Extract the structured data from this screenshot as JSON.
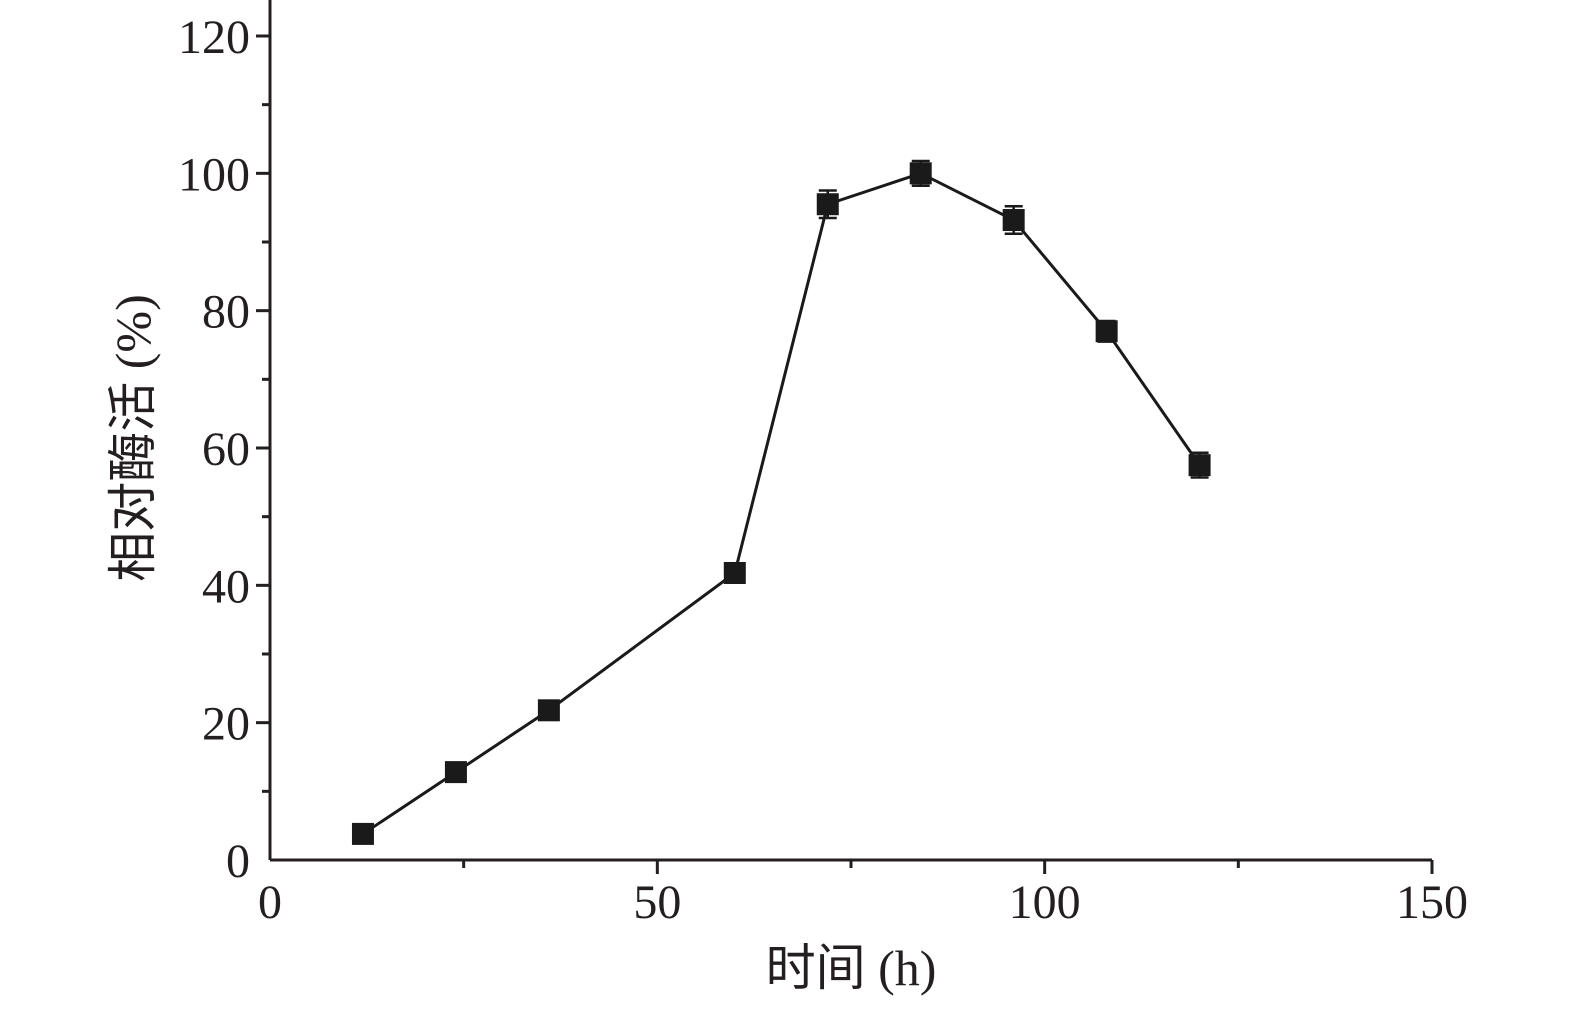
{
  "chart_data": {
    "type": "line",
    "xlabel": "时间 (h)",
    "ylabel": "相对酶活 (%)",
    "xlim": [
      0,
      150
    ],
    "ylim": [
      0,
      120
    ],
    "x_ticks": [
      "0",
      "50",
      "100",
      "150"
    ],
    "y_ticks": [
      "0",
      "20",
      "40",
      "60",
      "80",
      "100",
      "120"
    ],
    "grid": false,
    "legend": "none",
    "colors": {
      "axis": "#231f20",
      "series": "#1a1a1a"
    },
    "series": [
      {
        "marker": "square",
        "x": [
          12,
          24,
          36,
          60,
          72,
          84,
          96,
          108,
          120
        ],
        "y": [
          3.8,
          12.8,
          21.8,
          41.8,
          95.5,
          100.0,
          93.2,
          77.0,
          57.5
        ],
        "error": [
          0.8,
          0.8,
          0.9,
          1.4,
          2.0,
          1.8,
          2.0,
          1.5,
          1.8
        ]
      }
    ]
  }
}
